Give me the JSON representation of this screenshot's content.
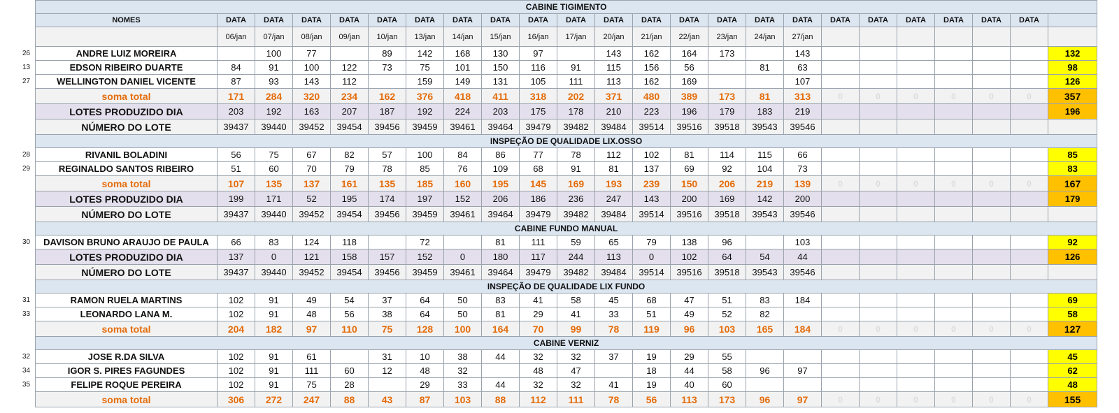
{
  "header": {
    "nomes": "NOMES",
    "data_label": "DATA",
    "dates": [
      "06/jan",
      "07/jan",
      "08/jan",
      "09/jan",
      "10/jan",
      "13/jan",
      "14/jan",
      "15/jan",
      "16/jan",
      "17/jan",
      "20/jan",
      "21/jan",
      "22/jan",
      "23/jan",
      "24/jan",
      "27/jan",
      "",
      "",
      "",
      "",
      "",
      ""
    ]
  },
  "sections": [
    {
      "title": "CABINE TIGIMENTO",
      "rows": [
        {
          "type": "person",
          "num": "26",
          "name": "ANDRE LUIZ MOREIRA",
          "values": [
            "",
            "100",
            "77",
            "",
            "89",
            "142",
            "168",
            "130",
            "97",
            "",
            "143",
            "162",
            "164",
            "173",
            "",
            "143",
            "",
            "",
            "",
            "",
            "",
            ""
          ],
          "total": "132"
        },
        {
          "type": "person",
          "num": "13",
          "name": "EDSON RIBEIRO DUARTE",
          "values": [
            "84",
            "91",
            "100",
            "122",
            "73",
            "75",
            "101",
            "150",
            "116",
            "91",
            "115",
            "156",
            "56",
            "",
            "81",
            "63",
            "",
            "",
            "",
            "",
            "",
            ""
          ],
          "total": "98"
        },
        {
          "type": "person",
          "num": "27",
          "name": "WELLINGTON DANIEL VICENTE",
          "values": [
            "87",
            "93",
            "143",
            "112",
            "",
            "159",
            "149",
            "131",
            "105",
            "111",
            "113",
            "162",
            "169",
            "",
            "",
            "107",
            "",
            "",
            "",
            "",
            "",
            ""
          ],
          "total": "126"
        },
        {
          "type": "soma",
          "name": "soma total",
          "values": [
            "171",
            "284",
            "320",
            "234",
            "162",
            "376",
            "418",
            "411",
            "318",
            "202",
            "371",
            "480",
            "389",
            "173",
            "81",
            "313",
            "0",
            "0",
            "0",
            "0",
            "0",
            "0"
          ],
          "total": "357"
        },
        {
          "type": "lotes",
          "name": "LOTES PRODUZIDO DIA",
          "values": [
            "203",
            "192",
            "163",
            "207",
            "187",
            "192",
            "224",
            "203",
            "175",
            "178",
            "210",
            "223",
            "196",
            "179",
            "183",
            "219",
            "",
            "",
            "",
            "",
            "",
            ""
          ],
          "total": "196"
        },
        {
          "type": "numlote",
          "name": "NÚMERO DO LOTE",
          "values": [
            "39437",
            "39440",
            "39452",
            "39454",
            "39456",
            "39459",
            "39461",
            "39464",
            "39479",
            "39482",
            "39484",
            "39514",
            "39516",
            "39518",
            "39543",
            "39546",
            "",
            "",
            "",
            "",
            "",
            ""
          ],
          "total": ""
        }
      ]
    },
    {
      "title": "INSPEÇÃO DE QUALIDADE LIX.OSSO",
      "rows": [
        {
          "type": "person",
          "num": "28",
          "name": "RIVANIL BOLADINI",
          "values": [
            "56",
            "75",
            "67",
            "82",
            "57",
            "100",
            "84",
            "86",
            "77",
            "78",
            "112",
            "102",
            "81",
            "114",
            "115",
            "66",
            "",
            "",
            "",
            "",
            "",
            ""
          ],
          "total": "85"
        },
        {
          "type": "person",
          "num": "29",
          "name": "REGINALDO SANTOS RIBEIRO",
          "values": [
            "51",
            "60",
            "70",
            "79",
            "78",
            "85",
            "76",
            "109",
            "68",
            "91",
            "81",
            "137",
            "69",
            "92",
            "104",
            "73",
            "",
            "",
            "",
            "",
            "",
            ""
          ],
          "total": "83"
        },
        {
          "type": "soma",
          "name": "soma total",
          "values": [
            "107",
            "135",
            "137",
            "161",
            "135",
            "185",
            "160",
            "195",
            "145",
            "169",
            "193",
            "239",
            "150",
            "206",
            "219",
            "139",
            "0",
            "0",
            "0",
            "0",
            "0",
            "0"
          ],
          "total": "167"
        },
        {
          "type": "lotes",
          "name": "LOTES PRODUZIDO DIA",
          "values": [
            "199",
            "171",
            "52",
            "195",
            "174",
            "197",
            "152",
            "206",
            "186",
            "236",
            "247",
            "143",
            "200",
            "169",
            "142",
            "200",
            "",
            "",
            "",
            "",
            "",
            ""
          ],
          "total": "179"
        },
        {
          "type": "numlote",
          "name": "NÚMERO DO LOTE",
          "values": [
            "39437",
            "39440",
            "39452",
            "39454",
            "39456",
            "39459",
            "39461",
            "39464",
            "39479",
            "39482",
            "39484",
            "39514",
            "39516",
            "39518",
            "39543",
            "39546",
            "",
            "",
            "",
            "",
            "",
            ""
          ],
          "total": ""
        }
      ]
    },
    {
      "title": "CABINE FUNDO MANUAL",
      "rows": [
        {
          "type": "person",
          "num": "30",
          "name": "DAVISON BRUNO ARAUJO DE PAULA",
          "values": [
            "66",
            "83",
            "124",
            "118",
            "",
            "72",
            "",
            "81",
            "111",
            "59",
            "65",
            "79",
            "138",
            "96",
            "",
            "103",
            "",
            "",
            "",
            "",
            "",
            ""
          ],
          "total": "92"
        },
        {
          "type": "lotes",
          "name": "LOTES PRODUZIDO DIA",
          "values": [
            "137",
            "0",
            "121",
            "158",
            "157",
            "152",
            "0",
            "180",
            "117",
            "244",
            "113",
            "0",
            "102",
            "64",
            "54",
            "44",
            "",
            "",
            "",
            "",
            "",
            ""
          ],
          "total": "126"
        },
        {
          "type": "numlote",
          "name": "NÚMERO DO LOTE",
          "values": [
            "39437",
            "39440",
            "39452",
            "39454",
            "39456",
            "39459",
            "39461",
            "39464",
            "39479",
            "39482",
            "39484",
            "39514",
            "39516",
            "39518",
            "39543",
            "39546",
            "",
            "",
            "",
            "",
            "",
            ""
          ],
          "total": ""
        }
      ]
    },
    {
      "title": "INSPEÇÃO DE QUALIDADE LIX FUNDO",
      "rows": [
        {
          "type": "person",
          "num": "31",
          "name": "RAMON RUELA MARTINS",
          "values": [
            "102",
            "91",
            "49",
            "54",
            "37",
            "64",
            "50",
            "83",
            "41",
            "58",
            "45",
            "68",
            "47",
            "51",
            "83",
            "184",
            "",
            "",
            "",
            "",
            "",
            ""
          ],
          "total": "69"
        },
        {
          "type": "person",
          "num": "33",
          "name": "LEONARDO LANA M.",
          "values": [
            "102",
            "91",
            "48",
            "56",
            "38",
            "64",
            "50",
            "81",
            "29",
            "41",
            "33",
            "51",
            "49",
            "52",
            "82",
            "",
            "",
            "",
            "",
            "",
            "",
            ""
          ],
          "total": "58"
        },
        {
          "type": "soma",
          "name": "soma total",
          "values": [
            "204",
            "182",
            "97",
            "110",
            "75",
            "128",
            "100",
            "164",
            "70",
            "99",
            "78",
            "119",
            "96",
            "103",
            "165",
            "184",
            "0",
            "0",
            "0",
            "0",
            "0",
            "0"
          ],
          "total": "127"
        }
      ]
    },
    {
      "title": "CABINE VERNIZ",
      "rows": [
        {
          "type": "person",
          "num": "32",
          "name": "JOSE R.DA SILVA",
          "values": [
            "102",
            "91",
            "61",
            "",
            "31",
            "10",
            "38",
            "44",
            "32",
            "32",
            "37",
            "19",
            "29",
            "55",
            "",
            "",
            "",
            "",
            "",
            "",
            "",
            ""
          ],
          "total": "45"
        },
        {
          "type": "person",
          "num": "34",
          "name": "IGOR S. PIRES FAGUNDES",
          "values": [
            "102",
            "91",
            "111",
            "60",
            "12",
            "48",
            "32",
            "",
            "48",
            "47",
            "",
            "18",
            "44",
            "58",
            "96",
            "97",
            "",
            "",
            "",
            "",
            "",
            ""
          ],
          "total": "62"
        },
        {
          "type": "person",
          "num": "35",
          "name": "FELIPE ROQUE PEREIRA",
          "values": [
            "102",
            "91",
            "75",
            "28",
            "",
            "29",
            "33",
            "44",
            "32",
            "32",
            "41",
            "19",
            "40",
            "60",
            "",
            "",
            "",
            "",
            "",
            "",
            "",
            ""
          ],
          "total": "48"
        },
        {
          "type": "soma",
          "name": "soma total",
          "values": [
            "306",
            "272",
            "247",
            "88",
            "43",
            "87",
            "103",
            "88",
            "112",
            "111",
            "78",
            "56",
            "113",
            "173",
            "96",
            "97",
            "0",
            "0",
            "0",
            "0",
            "0",
            "0"
          ],
          "total": "155"
        }
      ]
    }
  ],
  "colors": {
    "header_fill": "#dce6f1",
    "soma_text": "#e46c0a",
    "lotes_fill": "#e4dfec",
    "total_person_fill": "#ffff00",
    "total_sum_fill": "#ffc000"
  }
}
